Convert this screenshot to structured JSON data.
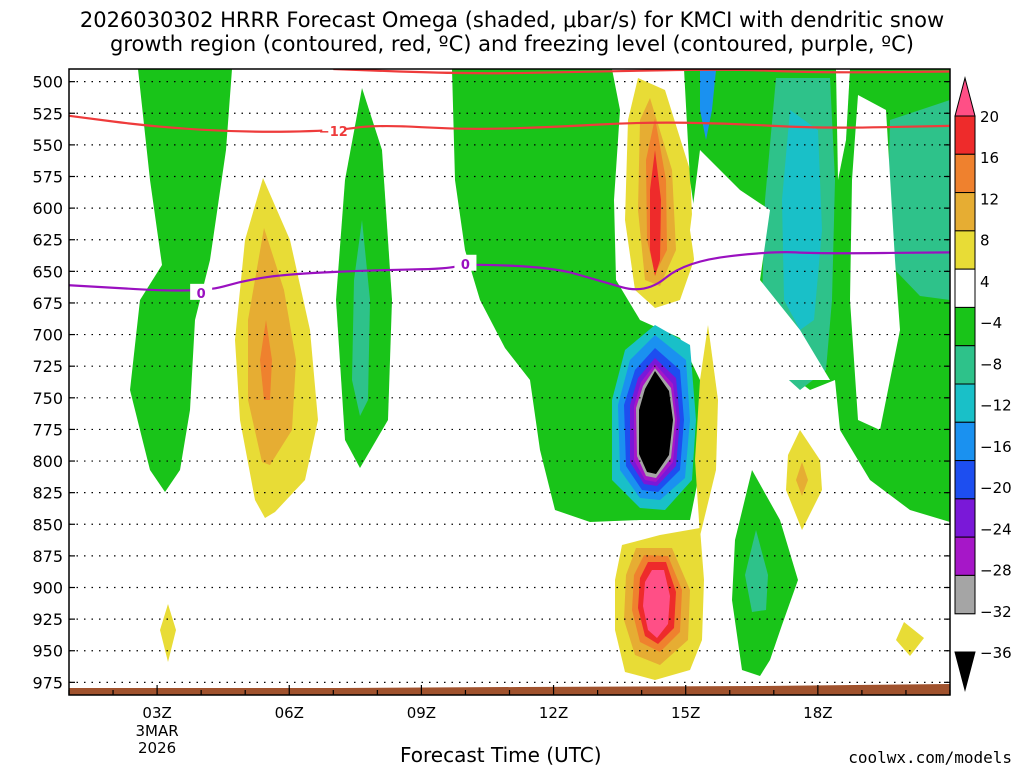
{
  "title_line1": "2026030302 HRRR Forecast Omega (shaded, μbar/s) for KMCI with dendritic snow",
  "title_line2": "growth region (contoured, red, ºC) and freezing level (contoured, purple, ºC)",
  "xlabel": "Forecast Time (UTC)",
  "credit": "coolwx.com/models",
  "chart_data": {
    "type": "time-height cross section (filled contours)",
    "variable": "Omega",
    "units": "μbar/s",
    "xaxis": {
      "range_hours_utc": [
        1.0,
        21.0
      ],
      "ticks": [
        {
          "hour": 3,
          "label": "03Z",
          "sub1": "3MAR",
          "sub2": "2026"
        },
        {
          "hour": 6,
          "label": "06Z"
        },
        {
          "hour": 9,
          "label": "09Z"
        },
        {
          "hour": 12,
          "label": "12Z"
        },
        {
          "hour": 15,
          "label": "15Z"
        },
        {
          "hour": 18,
          "label": "18Z"
        }
      ]
    },
    "yaxis": {
      "units": "hPa",
      "range": [
        490,
        985
      ],
      "ticks": [
        500,
        525,
        550,
        575,
        600,
        625,
        650,
        675,
        700,
        725,
        750,
        775,
        800,
        825,
        850,
        875,
        900,
        925,
        950,
        975
      ]
    },
    "colorbar": {
      "labels": [
        "20",
        "16",
        "12",
        "8",
        "4",
        "−4",
        "−8",
        "−12",
        "−16",
        "−20",
        "−24",
        "−28",
        "−32",
        "−36"
      ],
      "colors": [
        "#ff4f86",
        "#ee2b2b",
        "#ef812e",
        "#e6ad33",
        "#e8dc36",
        "#ffffff",
        "#19c419",
        "#2ec28a",
        "#19c0c8",
        "#1a91f0",
        "#1d4ef0",
        "#7a18d8",
        "#a617c8",
        "#a5a5a5",
        "#000000"
      ]
    },
    "contours": [
      {
        "name": "dendritic snow growth",
        "color": "#ee3b3b",
        "level_label": "−12",
        "points": [
          [
            1,
            527
          ],
          [
            3,
            536
          ],
          [
            5,
            540
          ],
          [
            7,
            539
          ],
          [
            8,
            534
          ],
          [
            10,
            538
          ],
          [
            12,
            536
          ],
          [
            14,
            532
          ],
          [
            16,
            533
          ],
          [
            18,
            537
          ],
          [
            21,
            535
          ]
        ]
      },
      {
        "name": "dendritic upper",
        "color": "#ee3b3b",
        "level_label": "",
        "points": [
          [
            7,
            490
          ],
          [
            10,
            494
          ],
          [
            13,
            492
          ],
          [
            16,
            490
          ],
          [
            18,
            493
          ],
          [
            21,
            492
          ]
        ]
      },
      {
        "name": "freezing level",
        "color": "#9a10c0",
        "level_label": "0",
        "points": [
          [
            1,
            661
          ],
          [
            4,
            667
          ],
          [
            5,
            657
          ],
          [
            6,
            652
          ],
          [
            8,
            649
          ],
          [
            9.6,
            648
          ],
          [
            10,
            644
          ],
          [
            12,
            647
          ],
          [
            13,
            657
          ],
          [
            14.1,
            668
          ],
          [
            15,
            642
          ],
          [
            17,
            634
          ],
          [
            18,
            636
          ],
          [
            21,
            635
          ]
        ]
      }
    ],
    "features": [
      {
        "desc": "strong ascent core",
        "hour": 14.0,
        "pressure_hPa": 740,
        "min_value": -36
      },
      {
        "desc": "descent max low levels",
        "hour": 14.0,
        "pressure_hPa": 905,
        "max_value": 20
      },
      {
        "desc": "descent upper",
        "hour": 14.0,
        "pressure_hPa": 585,
        "max_value": 16
      },
      {
        "desc": "descent plume",
        "hour": 6.0,
        "pressure_hPa": 665,
        "max_value": 12
      }
    ],
    "ground_color": "#a0522d"
  }
}
